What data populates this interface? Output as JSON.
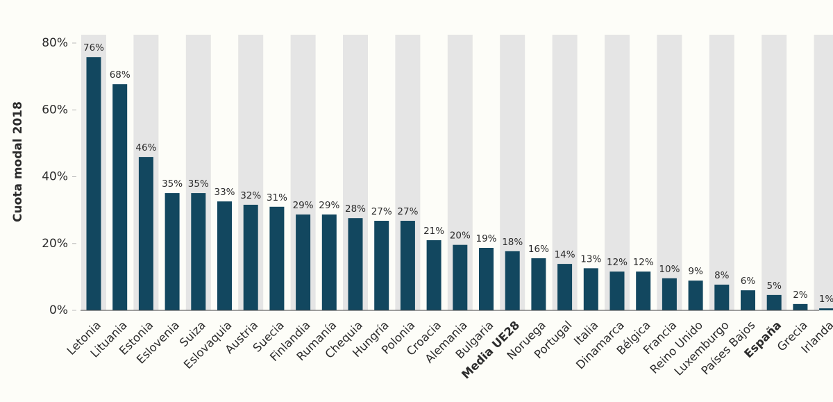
{
  "chart_data": {
    "type": "bar",
    "y_axis_label": "Cuota modal 2018",
    "categories": [
      "Letonia",
      "Lituania",
      "Estonia",
      "Eslovenia",
      "Suiza",
      "Eslovaquia",
      "Austria",
      "Suecia",
      "Finlandia",
      "Rumanía",
      "Chequia",
      "Hungría",
      "Polonia",
      "Croacia",
      "Alemania",
      "Bulgaria",
      "Media UE28",
      "Noruega",
      "Portugal",
      "Italia",
      "Dinamarca",
      "Bélgica",
      "Francia",
      "Reino Unido",
      "Luxemburgo",
      "Países Bajos",
      "España",
      "Grecia",
      "Irlanda"
    ],
    "values": [
      75.8,
      67.7,
      45.9,
      35.1,
      35.1,
      32.6,
      31.6,
      31.0,
      28.7,
      28.7,
      27.6,
      26.8,
      26.8,
      21.0,
      19.6,
      18.7,
      17.7,
      15.6,
      13.9,
      12.6,
      11.6,
      11.6,
      9.6,
      8.9,
      7.7,
      6.0,
      4.6,
      1.9,
      0.6
    ],
    "value_labels": [
      "76%",
      "68%",
      "46%",
      "35%",
      "35%",
      "33%",
      "32%",
      "31%",
      "29%",
      "29%",
      "28%",
      "27%",
      "27%",
      "21%",
      "20%",
      "19%",
      "18%",
      "16%",
      "14%",
      "13%",
      "12%",
      "12%",
      "10%",
      "9%",
      "8%",
      "6%",
      "5%",
      "2%",
      "1%"
    ],
    "color": "#12475f",
    "band_color": "#e5e5e5",
    "highlight_indices": [
      16,
      26
    ],
    "ylim": [
      0,
      80
    ],
    "yticks": [
      {
        "value": 0,
        "label": "0%"
      },
      {
        "value": 20,
        "label": "20%"
      },
      {
        "value": 40,
        "label": "40%"
      },
      {
        "value": 60,
        "label": "60%"
      },
      {
        "value": 80,
        "label": "80%"
      }
    ]
  }
}
